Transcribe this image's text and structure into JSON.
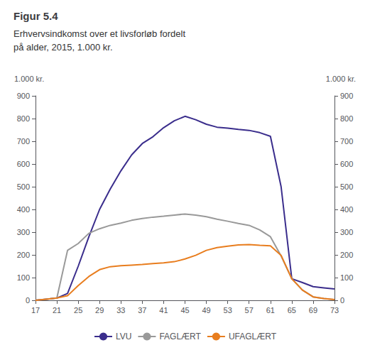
{
  "chart_data": {
    "type": "line",
    "title": "Figur 5.4",
    "subtitle": "Erhvervsindkomst over et livsforløb fordelt\npå alder, 2015, 1.000 kr.",
    "ylabel": "1.000 kr.",
    "y2label": "1.000 kr.",
    "x": [
      17,
      19,
      21,
      23,
      25,
      27,
      29,
      31,
      33,
      35,
      37,
      39,
      41,
      43,
      45,
      47,
      49,
      51,
      53,
      55,
      57,
      59,
      61,
      63,
      65,
      67,
      69,
      71,
      73
    ],
    "xlim": [
      17,
      73
    ],
    "xticks": [
      17,
      21,
      25,
      29,
      33,
      37,
      41,
      45,
      49,
      53,
      57,
      61,
      65,
      69,
      73
    ],
    "ylim": [
      0,
      900
    ],
    "yticks": [
      0,
      100,
      200,
      300,
      400,
      500,
      600,
      700,
      800,
      900
    ],
    "y2lim": [
      0,
      900
    ],
    "y2ticks": [
      0,
      100,
      200,
      300,
      400,
      500,
      600,
      700,
      800,
      900
    ],
    "grid": false,
    "legend": "bottom",
    "series": [
      {
        "name": "LVU",
        "color": "#3a2d8c",
        "values": [
          0,
          5,
          10,
          30,
          150,
          280,
          400,
          490,
          570,
          640,
          690,
          720,
          760,
          790,
          810,
          795,
          775,
          762,
          758,
          752,
          748,
          738,
          722,
          500,
          95,
          78,
          60,
          55,
          50
        ]
      },
      {
        "name": "FAGLÆRT",
        "color": "#999999",
        "values": [
          0,
          5,
          10,
          220,
          250,
          295,
          315,
          330,
          340,
          352,
          360,
          366,
          370,
          375,
          380,
          375,
          368,
          357,
          348,
          338,
          330,
          310,
          280,
          195,
          95,
          45,
          15,
          8,
          3
        ]
      },
      {
        "name": "UFAGLÆRT",
        "color": "#e87d1e",
        "values": [
          0,
          5,
          10,
          20,
          65,
          105,
          135,
          148,
          152,
          155,
          158,
          162,
          165,
          170,
          182,
          198,
          220,
          232,
          238,
          244,
          245,
          242,
          240,
          198,
          95,
          45,
          15,
          8,
          3
        ]
      }
    ]
  }
}
